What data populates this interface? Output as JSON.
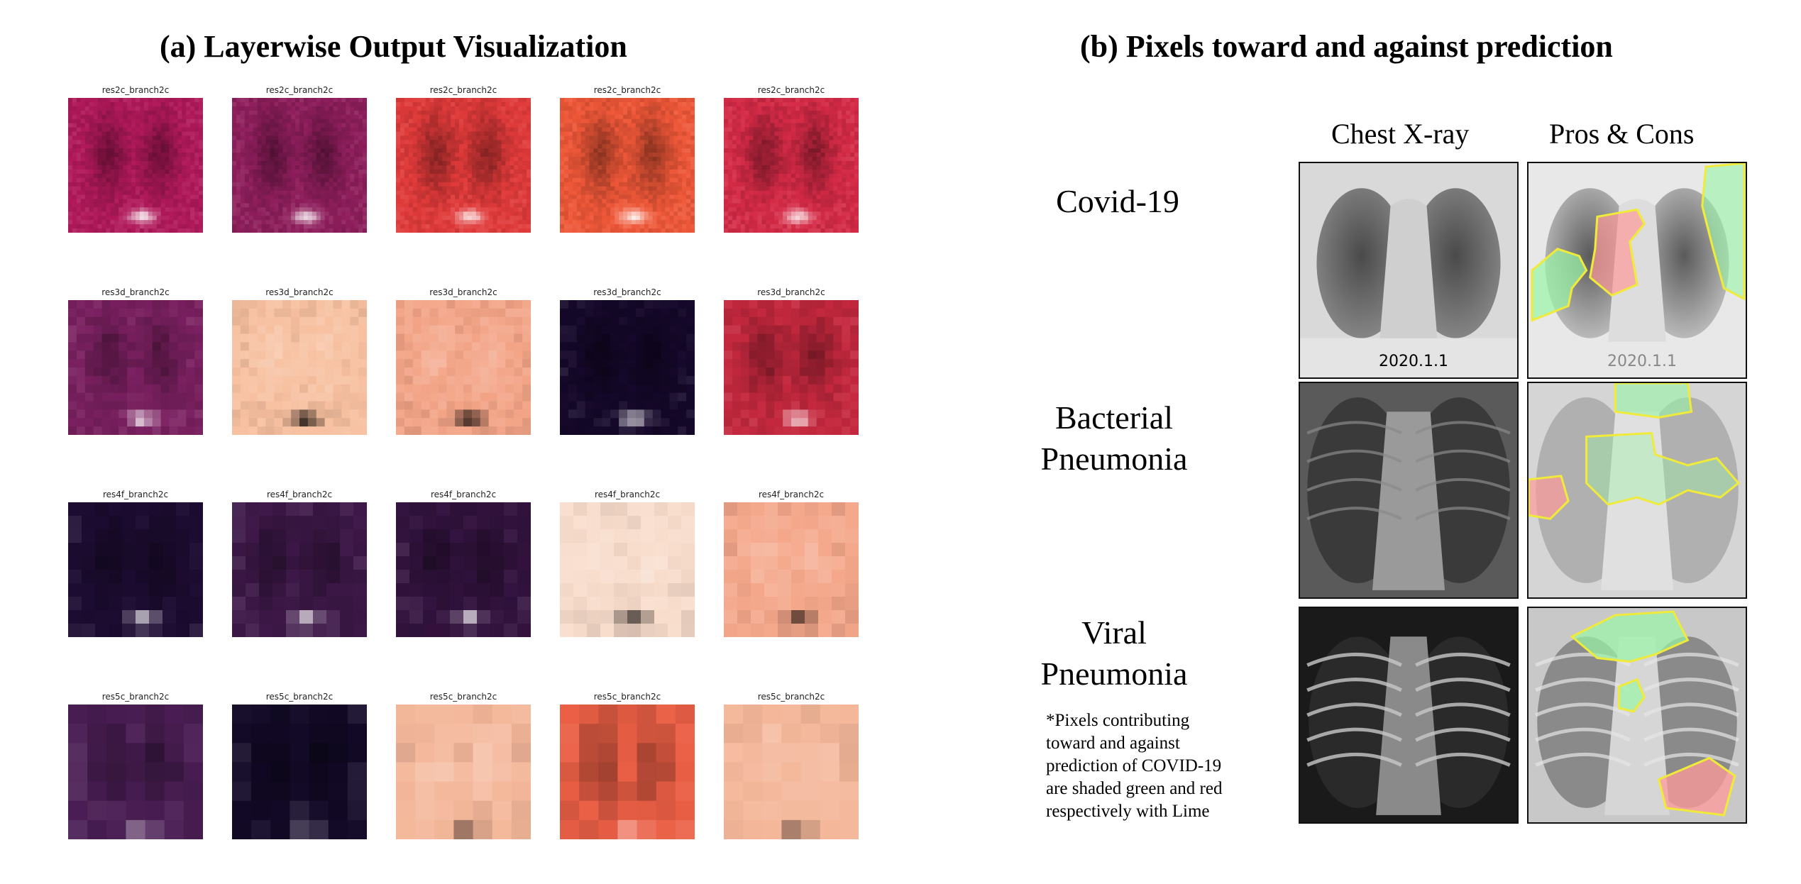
{
  "panel_a": {
    "title": "(a) Layerwise Output Visualization",
    "rows": [
      {
        "layer": "res2c_branch2c",
        "grid": 32,
        "tiles": [
          {
            "base": "#b0195a"
          },
          {
            "base": "#8e1e5c"
          },
          {
            "base": "#e03a3a"
          },
          {
            "base": "#ee5738"
          },
          {
            "base": "#d42a46"
          }
        ]
      },
      {
        "layer": "res3d_branch2c",
        "grid": 16,
        "tiles": [
          {
            "base": "#7a2060"
          },
          {
            "base": "#f7c0a0"
          },
          {
            "base": "#f3a487"
          },
          {
            "base": "#15082a"
          },
          {
            "base": "#c4283e"
          }
        ]
      },
      {
        "layer": "res4f_branch2c",
        "grid": 10,
        "tiles": [
          {
            "base": "#1d0c32"
          },
          {
            "base": "#3d1848"
          },
          {
            "base": "#33133f"
          },
          {
            "base": "#f8dccb"
          },
          {
            "base": "#f4a78a"
          }
        ]
      },
      {
        "layer": "res5c_branch2c",
        "grid": 7,
        "tiles": [
          {
            "base": "#4a1e54"
          },
          {
            "base": "#130a28"
          },
          {
            "base": "#f4b79a"
          },
          {
            "base": "#ea5f45"
          },
          {
            "base": "#f4b79a"
          }
        ]
      }
    ]
  },
  "panel_b": {
    "title": "(b) Pixels toward and against prediction",
    "col_xray": "Chest X-ray",
    "col_proscons": "Pros & Cons",
    "rows": [
      {
        "label_lines": [
          "Covid-19"
        ],
        "stamp": "2020.1.1"
      },
      {
        "label_lines": [
          "Bacterial",
          "Pneumonia"
        ],
        "stamp": ""
      },
      {
        "label_lines": [
          "Viral",
          "Pneumonia"
        ],
        "stamp": ""
      }
    ],
    "note_lines": [
      "*Pixels contributing",
      "toward and against",
      "prediction of COVID-19",
      "are shaded green and red",
      "respectively with Lime"
    ],
    "colors": {
      "positive": "#9af5a6",
      "negative": "#ff8a8a",
      "outline": "#f0ea3a"
    }
  }
}
